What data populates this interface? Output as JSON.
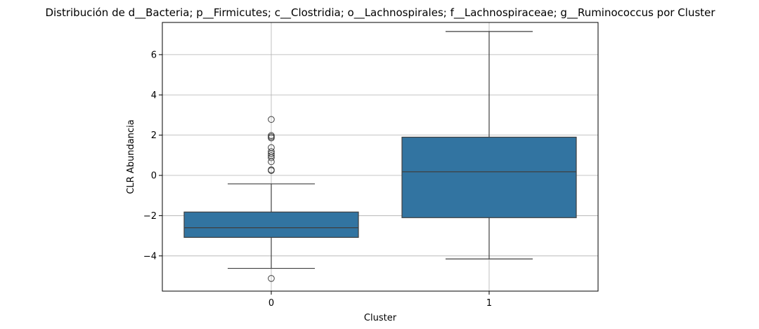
{
  "chart_data": {
    "type": "box",
    "title": "Distribución de d__Bacteria; p__Firmicutes; c__Clostridia; o__Lachnospirales; f__Lachnospiraceae; g__Ruminococcus por Cluster",
    "xlabel": "Cluster",
    "ylabel": "CLR Abundancia",
    "categories": [
      "0",
      "1"
    ],
    "ylim": [
      -5.75,
      7.6
    ],
    "yticks": [
      -4,
      -2,
      0,
      2,
      4,
      6
    ],
    "grid": true,
    "color": "#3274a1",
    "boxes": [
      {
        "category": "0",
        "whisker_low": -4.62,
        "q1": -3.08,
        "median": -2.6,
        "q3": -1.82,
        "whisker_high": -0.42,
        "outliers": [
          2.78,
          1.98,
          1.92,
          1.86,
          1.38,
          1.18,
          1.08,
          0.98,
          0.88,
          0.68,
          0.28,
          0.24,
          -5.12
        ]
      },
      {
        "category": "1",
        "whisker_low": -4.15,
        "q1": -2.1,
        "median": 0.18,
        "q3": 1.9,
        "whisker_high": 7.15,
        "outliers": []
      }
    ]
  }
}
